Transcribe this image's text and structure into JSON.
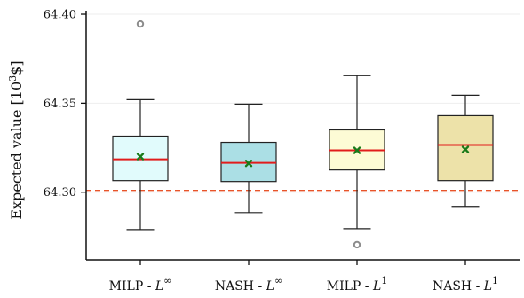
{
  "chart_data": {
    "type": "box",
    "ylabel_text": "Expected value [10",
    "ylabel_sup": "3",
    "ylabel_tail": "$]",
    "ylim": [
      64.262,
      64.402
    ],
    "yticks": [
      64.3,
      64.35,
      64.4
    ],
    "ytick_labels": [
      "64.30",
      "64.35",
      "64.40"
    ],
    "reference_line": {
      "y": 64.301,
      "style": "dashed",
      "color": "#e8542a"
    },
    "grid": {
      "horizontal": true,
      "color": "#eeeeee"
    },
    "categories": [
      {
        "label_main": "MILP - ",
        "label_var": "L",
        "label_sup": "∞"
      },
      {
        "label_main": "NASH - ",
        "label_var": "L",
        "label_sup": "∞"
      },
      {
        "label_main": "MILP - ",
        "label_var": "L",
        "label_sup": "1"
      },
      {
        "label_main": "NASH - ",
        "label_var": "L",
        "label_sup": "1"
      }
    ],
    "boxes": [
      {
        "whislo": 64.279,
        "q1": 64.3065,
        "med": 64.3185,
        "q3": 64.3315,
        "whishi": 64.352,
        "mean": 64.32,
        "fliers": [
          64.3945
        ],
        "fill": "#e1fbfc"
      },
      {
        "whislo": 64.2885,
        "q1": 64.306,
        "med": 64.3165,
        "q3": 64.328,
        "whishi": 64.3495,
        "mean": 64.3162,
        "fliers": [],
        "fill": "#abdfe5"
      },
      {
        "whislo": 64.2795,
        "q1": 64.3125,
        "med": 64.3235,
        "q3": 64.335,
        "whishi": 64.3655,
        "mean": 64.3235,
        "fliers": [
          64.2705
        ],
        "fill": "#fdfbd5"
      },
      {
        "whislo": 64.292,
        "q1": 64.3065,
        "med": 64.3265,
        "q3": 64.343,
        "whishi": 64.3545,
        "mean": 64.324,
        "fliers": [],
        "fill": "#ede2a9"
      }
    ],
    "colors": {
      "median": "#e11c1c",
      "mean": "#1a7a1a",
      "flier": "#8c8c8c",
      "box_edge": "#222222"
    }
  }
}
